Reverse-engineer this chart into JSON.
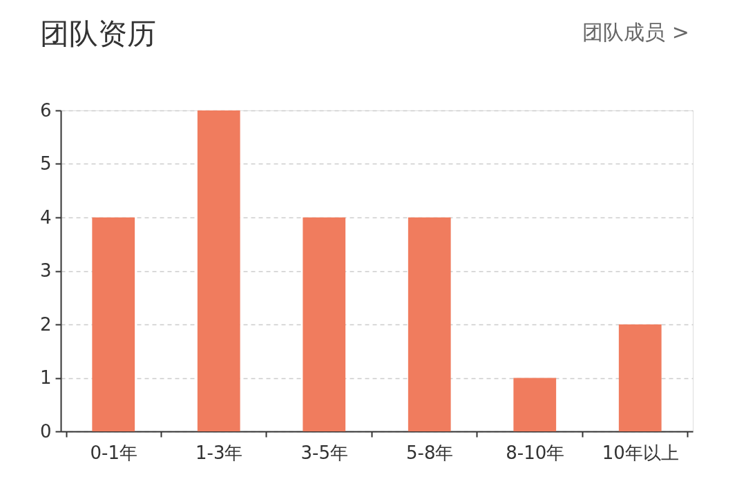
{
  "chart_data": {
    "type": "bar",
    "title": "团队资历",
    "annotations": [
      "团队成员 >"
    ],
    "categories": [
      "0-1年",
      "1-3年",
      "3-5年",
      "5-8年",
      "8-10年",
      "10年以上"
    ],
    "values": [
      4,
      6,
      4,
      4,
      1,
      2
    ],
    "color": "#f07c5e",
    "ylim": [
      0,
      6
    ],
    "yticks": [
      0,
      1,
      2,
      3,
      4,
      5,
      6
    ],
    "grid": "y"
  }
}
